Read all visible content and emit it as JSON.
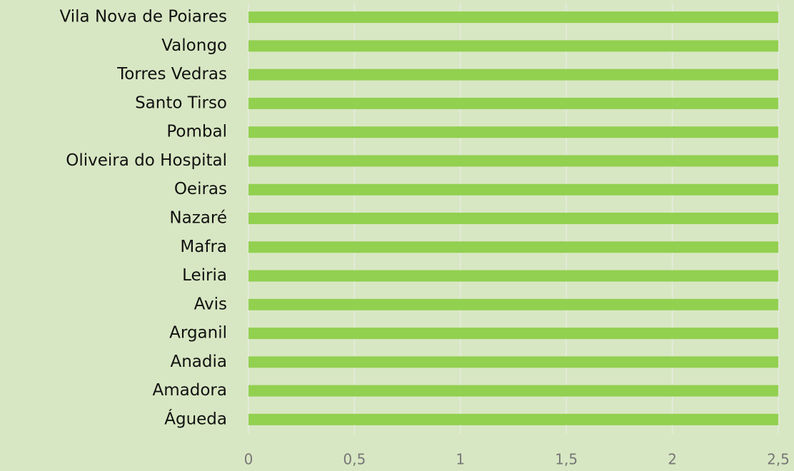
{
  "chart_data": {
    "type": "hbar",
    "categories": [
      "Vila Nova de Poiares",
      "Valongo",
      "Torres Vedras",
      "Santo Tirso",
      "Pombal",
      "Oliveira do Hospital",
      "Oeiras",
      "Nazaré",
      "Mafra",
      "Leiria",
      "Avis",
      "Arganil",
      "Anadia",
      "Amadora",
      "Águeda"
    ],
    "values": [
      2.5,
      2.5,
      2.5,
      2.5,
      2.5,
      2.5,
      2.5,
      2.5,
      2.5,
      2.5,
      2.5,
      2.5,
      2.5,
      2.5,
      2.5
    ],
    "color": "#92d050",
    "xlim": [
      0,
      2.5
    ],
    "xticks": [
      0,
      {
        "value": 0.5,
        "label": "0,5"
      },
      1,
      {
        "value": 1.5,
        "label": "1,5"
      },
      2,
      {
        "value": 2.5,
        "label": "2,5"
      }
    ],
    "grid": true
  }
}
